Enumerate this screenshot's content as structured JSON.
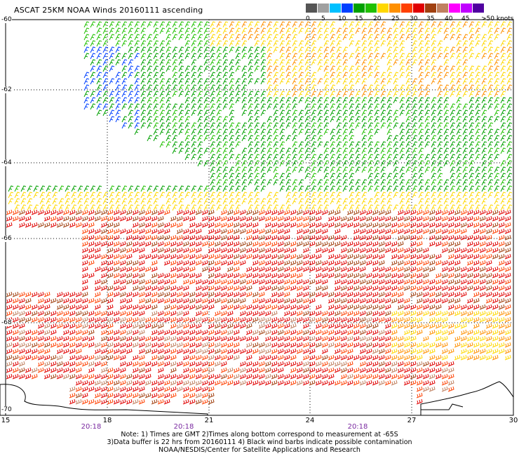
{
  "title": "ASCAT 25KM NOAA Winds 20160111 ascending",
  "legend": {
    "labels": [
      "0",
      "5",
      "10",
      "15",
      "20",
      "25",
      "30",
      "35",
      "40",
      "45",
      ">50 knots"
    ],
    "colors": [
      "#555555",
      "#a0a0a0",
      "#00c0ff",
      "#0040ff",
      "#00a000",
      "#20c000",
      "#ffd800",
      "#ff9000",
      "#ff4000",
      "#e00000",
      "#a04010",
      "#c08060",
      "#ff00ff",
      "#c000ff",
      "#5000a0"
    ]
  },
  "lat_labels": [
    "-60",
    "-62",
    "-64",
    "-66",
    "-68",
    "-70"
  ],
  "lon_labels": [
    "15",
    "18",
    "21",
    "24",
    "27",
    "30"
  ],
  "time_labels": [
    "20:18",
    "20:18",
    "20:18"
  ],
  "notes": [
    "Note: 1) Times are GMT 2)Times along bottom correspond to measurement at -65S",
    "3)Data buffer is 22 hrs from 20160111 4) Black wind barbs indicate possible contamination",
    "NOAA/NESDIS/Center for Satellite Applications and Research"
  ]
}
